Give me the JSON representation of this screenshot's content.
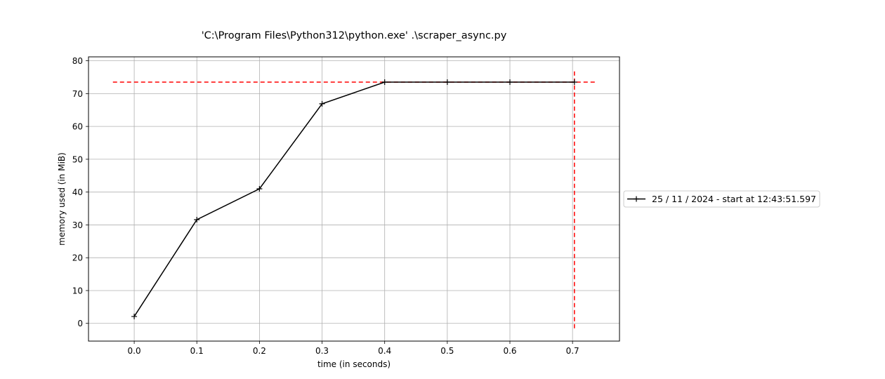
{
  "chart_data": {
    "type": "line",
    "title": "'C:\\Program Files\\Python312\\python.exe' .\\scraper_async.py",
    "xlabel": "time (in seconds)",
    "ylabel": "memory used (in MiB)",
    "xlim": [
      -0.073,
      0.775
    ],
    "ylim": [
      -5.4,
      81.2
    ],
    "xticks": [
      0.0,
      0.1,
      0.2,
      0.3,
      0.4,
      0.5,
      0.6,
      0.7
    ],
    "xtick_labels": [
      "0.0",
      "0.1",
      "0.2",
      "0.3",
      "0.4",
      "0.5",
      "0.6",
      "0.7"
    ],
    "yticks": [
      0,
      10,
      20,
      30,
      40,
      50,
      60,
      70,
      80
    ],
    "ytick_labels": [
      "0",
      "10",
      "20",
      "30",
      "40",
      "50",
      "60",
      "70",
      "80"
    ],
    "grid": true,
    "legend_position": "right",
    "series": [
      {
        "name": "25 / 11 / 2024 - start at 12:43:51.597",
        "color": "#000000",
        "marker": "+",
        "x": [
          0.0,
          0.1,
          0.2,
          0.3,
          0.4,
          0.5,
          0.6,
          0.703
        ],
        "y": [
          2.1,
          31.6,
          41.0,
          66.9,
          73.5,
          73.5,
          73.5,
          73.5
        ]
      }
    ],
    "reference_lines": [
      {
        "orientation": "horizontal",
        "y": 73.5,
        "x_range": [
          -0.034,
          0.738
        ],
        "color": "#ff0000",
        "style": "dashed"
      },
      {
        "orientation": "vertical",
        "x": 0.703,
        "y_range": [
          -1.5,
          77.5
        ],
        "color": "#ff0000",
        "style": "dashed"
      }
    ]
  }
}
